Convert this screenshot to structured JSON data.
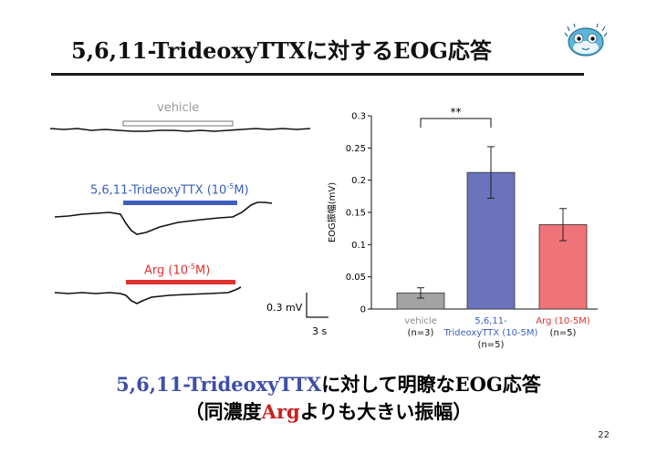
{
  "slide": {
    "title": "5,6,11-TrideoxyTTXに対するEOG応答",
    "page_number": "22"
  },
  "traces": {
    "vehicle_label": "vehicle",
    "ttx_label": "5,6,11-TrideoxyTTX (10",
    "ttx_label_exp": "-5",
    "ttx_label_end": "M)",
    "arg_label": "Arg (10",
    "arg_label_exp": "-5",
    "arg_label_end": "M)",
    "scale_mv": "0.3 mV",
    "scale_s": "3 s"
  },
  "colors": {
    "vehicle": "#a3a3a3",
    "ttx": "#6b73bd",
    "arg": "#ef7378",
    "ttx_text": "#3b5fb8",
    "arg_text": "#e0322f"
  },
  "chart_data": {
    "type": "bar",
    "ylabel": "EOG振幅(mV)",
    "ylim": [
      0,
      0.3
    ],
    "yticks": [
      "0",
      "0.05",
      "0.1",
      "0.15",
      "0.2",
      "0.25",
      "0.3"
    ],
    "categories": [
      "vehicle",
      "5,6,11-TrideoxyTTX (10-5M)",
      "Arg (10-5M)"
    ],
    "category_lines": [
      [
        "vehicle",
        "(n=3)"
      ],
      [
        "5,6,11-",
        "TrideoxyTTX (10-5M)",
        "(n=5)"
      ],
      [
        "Arg (10-5M)",
        "(n=5)"
      ]
    ],
    "values": [
      0.025,
      0.212,
      0.131
    ],
    "errors": [
      0.008,
      0.04,
      0.025
    ],
    "significance": "**"
  },
  "conclusion": {
    "line1_blue": "5,6,11-TrideoxyTTX",
    "line1_rest": "に対して明瞭なEOG応答",
    "line2_a": "（同濃度",
    "line2_red": "Arg",
    "line2_b": "よりも大きい振幅）"
  }
}
